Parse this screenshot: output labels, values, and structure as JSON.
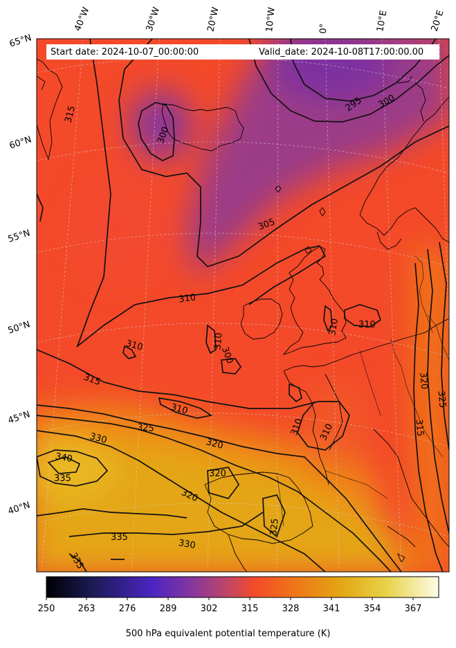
{
  "map": {
    "start_date_label": "Start date: 2024-10-07_00:00:00",
    "valid_date_label": "Valid_date: 2024-10-08T17:00:00.00",
    "longitude_labels": [
      "40°W",
      "30°W",
      "20°W",
      "10°W",
      "0°",
      "10°E",
      "20°E"
    ],
    "latitude_labels": [
      "65°N",
      "60°N",
      "55°N",
      "50°N",
      "45°N",
      "40°N"
    ],
    "contour_labels": [
      "315",
      "300",
      "295",
      "300",
      "305",
      "310",
      "310",
      "310",
      "310",
      "310",
      "300",
      "315",
      "310",
      "325",
      "330",
      "320",
      "340",
      "335",
      "320",
      "320",
      "325",
      "335",
      "330",
      "335",
      "320",
      "325",
      "315",
      "310",
      "310"
    ],
    "colors": {
      "purple": "#7d33a0",
      "red_orange": "#f44a2a",
      "orange": "#ef7418",
      "gold": "#e4a514"
    }
  },
  "colorbar": {
    "ticks": [
      "250",
      "263",
      "276",
      "289",
      "302",
      "315",
      "328",
      "341",
      "354",
      "367"
    ],
    "label": "500 hPa equivalent potential temperature (K)"
  }
}
